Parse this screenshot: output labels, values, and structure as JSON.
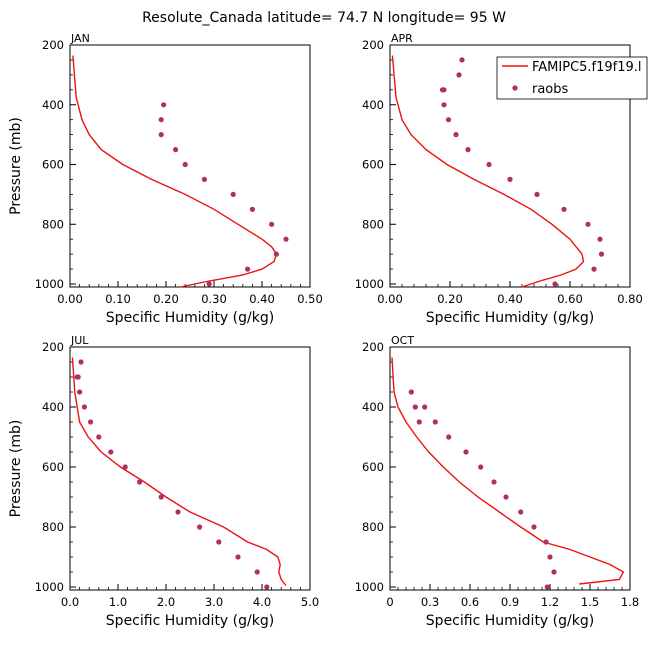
{
  "figure": {
    "title": "Resolute_Canada   latitude= 74.7 N longitude= 95 W",
    "colors": {
      "model": "#ee1111",
      "obs": "#b03060",
      "axis": "#000000"
    }
  },
  "legend": {
    "model_label": "FAMIPC5.f19f19.l",
    "obs_label": "raobs",
    "placement": "top-right of APR panel"
  },
  "chart_data": [
    {
      "type": "line",
      "panel": "JAN",
      "title": "JAN",
      "xlabel": "Specific Humidity (g/kg)",
      "ylabel": "Pressure (mb)",
      "xlim": [
        0,
        0.5
      ],
      "ylim": [
        1010,
        200
      ],
      "xticks": [
        "0.00",
        "0.10",
        "0.20",
        "0.30",
        "0.40",
        "0.50"
      ],
      "xtick_values": [
        0,
        0.1,
        0.2,
        0.3,
        0.4,
        0.5
      ],
      "yticks": [
        "200",
        "400",
        "600",
        "800",
        "1000"
      ],
      "yticks_shown": true,
      "series": [
        {
          "name": "FAMIPC5.f19f19.l",
          "style": "line",
          "x": [
            0.23,
            0.29,
            0.36,
            0.4,
            0.425,
            0.43,
            0.42,
            0.4,
            0.35,
            0.3,
            0.24,
            0.17,
            0.11,
            0.065,
            0.04,
            0.025,
            0.013,
            0.006
          ],
          "y": [
            1010,
            990,
            970,
            950,
            925,
            900,
            875,
            850,
            800,
            750,
            700,
            650,
            600,
            550,
            500,
            450,
            375,
            235
          ]
        },
        {
          "name": "raobs",
          "style": "points",
          "x": [
            0.29,
            0.37,
            0.43,
            0.45,
            0.42,
            0.38,
            0.34,
            0.28,
            0.24,
            0.22,
            0.19,
            0.19,
            0.195
          ],
          "y": [
            1000,
            950,
            900,
            850,
            800,
            750,
            700,
            650,
            600,
            550,
            500,
            450,
            400
          ]
        }
      ]
    },
    {
      "type": "line",
      "panel": "APR",
      "title": "APR",
      "xlabel": "Specific Humidity (g/kg)",
      "ylabel": "",
      "xlim": [
        0,
        0.8
      ],
      "ylim": [
        1010,
        200
      ],
      "xticks": [
        "0.00",
        "0.20",
        "0.40",
        "0.60",
        "0.80"
      ],
      "xtick_values": [
        0,
        0.2,
        0.4,
        0.6,
        0.8
      ],
      "yticks": [
        "200",
        "400",
        "600",
        "800",
        "1000"
      ],
      "yticks_shown": true,
      "series": [
        {
          "name": "FAMIPC5.f19f19.l",
          "style": "line",
          "x": [
            0.44,
            0.5,
            0.57,
            0.62,
            0.645,
            0.64,
            0.62,
            0.6,
            0.54,
            0.47,
            0.38,
            0.28,
            0.19,
            0.12,
            0.07,
            0.04,
            0.02,
            0.008
          ],
          "y": [
            1010,
            990,
            970,
            950,
            925,
            900,
            875,
            850,
            800,
            750,
            700,
            650,
            600,
            550,
            500,
            450,
            375,
            235
          ]
        },
        {
          "name": "raobs",
          "style": "points",
          "x": [
            0.55,
            0.68,
            0.705,
            0.7,
            0.66,
            0.58,
            0.49,
            0.4,
            0.33,
            0.26,
            0.22,
            0.195,
            0.18,
            0.18,
            0.175,
            0.23,
            0.24
          ],
          "y": [
            1000,
            950,
            900,
            850,
            800,
            750,
            700,
            650,
            600,
            550,
            500,
            450,
            400,
            350,
            350,
            300,
            250
          ]
        }
      ]
    },
    {
      "type": "line",
      "panel": "JUL",
      "title": "JUL",
      "xlabel": "Specific Humidity (g/kg)",
      "ylabel": "Pressure (mb)",
      "xlim": [
        0,
        5
      ],
      "ylim": [
        1010,
        200
      ],
      "xticks": [
        "0.0",
        "1.0",
        "2.0",
        "3.0",
        "4.0",
        "5.0"
      ],
      "xtick_values": [
        0,
        1,
        2,
        3,
        4,
        5
      ],
      "yticks": [
        "200",
        "400",
        "600",
        "800",
        "1000"
      ],
      "yticks_shown": true,
      "series": [
        {
          "name": "FAMIPC5.f19f19.l",
          "style": "line",
          "x": [
            4.5,
            4.4,
            4.35,
            4.38,
            4.33,
            4.1,
            3.7,
            3.2,
            2.5,
            2.0,
            1.55,
            1.05,
            0.65,
            0.38,
            0.2,
            0.1,
            0.05
          ],
          "y": [
            995,
            975,
            950,
            925,
            900,
            875,
            850,
            800,
            750,
            700,
            650,
            600,
            550,
            500,
            450,
            350,
            235
          ]
        },
        {
          "name": "raobs",
          "style": "points",
          "x": [
            4.1,
            3.9,
            3.5,
            3.1,
            2.7,
            2.25,
            1.9,
            1.45,
            1.15,
            0.85,
            0.6,
            0.43,
            0.3,
            0.2,
            0.15,
            0.17,
            0.23
          ],
          "y": [
            1000,
            950,
            900,
            850,
            800,
            750,
            700,
            650,
            600,
            550,
            500,
            450,
            400,
            350,
            300,
            300,
            250
          ]
        }
      ]
    },
    {
      "type": "line",
      "panel": "OCT",
      "title": "OCT",
      "xlabel": "Specific Humidity (g/kg)",
      "ylabel": "",
      "xlim": [
        0,
        1.8
      ],
      "ylim": [
        1010,
        200
      ],
      "xticks": [
        "0",
        "0.3",
        "0.6",
        "0.9",
        "1.2",
        "1.5",
        "1.8"
      ],
      "xtick_values": [
        0,
        0.3,
        0.6,
        0.9,
        1.2,
        1.5,
        1.8
      ],
      "yticks": [
        "200",
        "400",
        "600",
        "800",
        "1000"
      ],
      "yticks_shown": true,
      "series": [
        {
          "name": "FAMIPC5.f19f19.l",
          "style": "line",
          "x": [
            1.42,
            1.72,
            1.75,
            1.65,
            1.5,
            1.35,
            1.15,
            0.98,
            0.82,
            0.66,
            0.52,
            0.4,
            0.29,
            0.2,
            0.12,
            0.06,
            0.03,
            0.015
          ],
          "y": [
            990,
            975,
            950,
            925,
            900,
            875,
            850,
            800,
            750,
            700,
            650,
            600,
            550,
            500,
            450,
            400,
            350,
            235
          ]
        },
        {
          "name": "raobs",
          "style": "points",
          "x": [
            1.18,
            1.23,
            1.2,
            1.17,
            1.08,
            0.98,
            0.87,
            0.78,
            0.68,
            0.57,
            0.44,
            0.34,
            0.26,
            0.22,
            0.19,
            0.16
          ],
          "y": [
            1000,
            950,
            900,
            850,
            800,
            750,
            700,
            650,
            600,
            550,
            500,
            450,
            400,
            450,
            400,
            350
          ]
        }
      ]
    }
  ]
}
